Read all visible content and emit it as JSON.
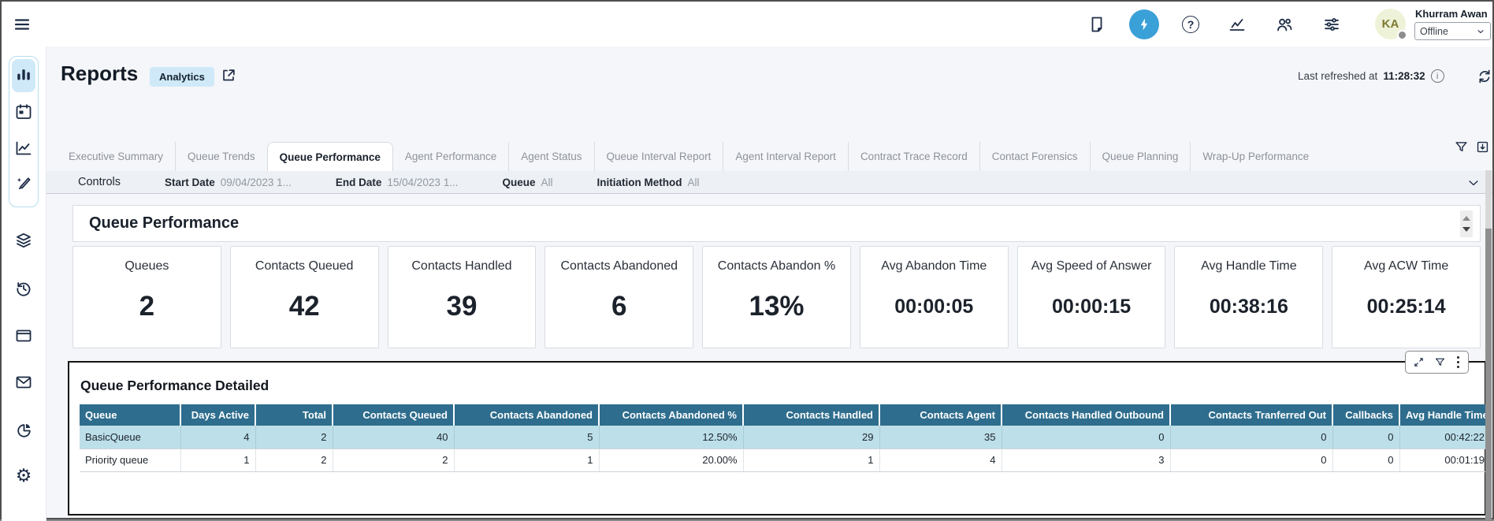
{
  "topbar": {
    "user": {
      "initials": "KA",
      "name": "Khurram Awan",
      "status": "Offline"
    }
  },
  "header": {
    "title": "Reports",
    "badge": "Analytics",
    "refresh_label": "Last refreshed at",
    "refresh_time": "11:28:32",
    "info_glyph": "i",
    "help_glyph": "?"
  },
  "tabs": [
    {
      "label": "Executive Summary",
      "active": false
    },
    {
      "label": "Queue Trends",
      "active": false
    },
    {
      "label": "Queue Performance",
      "active": true
    },
    {
      "label": "Agent Performance",
      "active": false
    },
    {
      "label": "Agent Status",
      "active": false
    },
    {
      "label": "Queue Interval Report",
      "active": false
    },
    {
      "label": "Agent Interval Report",
      "active": false
    },
    {
      "label": "Contract Trace Record",
      "active": false
    },
    {
      "label": "Contact Forensics",
      "active": false
    },
    {
      "label": "Queue Planning",
      "active": false
    },
    {
      "label": "Wrap-Up Performance",
      "active": false
    }
  ],
  "controls": {
    "label": "Controls",
    "filters": [
      {
        "label": "Start Date",
        "value": "09/04/2023 1..."
      },
      {
        "label": "End Date",
        "value": "15/04/2023 1..."
      },
      {
        "label": "Queue",
        "value": "All"
      },
      {
        "label": "Initiation Method",
        "value": "All"
      }
    ]
  },
  "section_title": "Queue Performance",
  "kpis": [
    {
      "label": "Queues",
      "value": "2"
    },
    {
      "label": "Contacts Queued",
      "value": "42"
    },
    {
      "label": "Contacts Handled",
      "value": "39"
    },
    {
      "label": "Contacts Abandoned",
      "value": "6"
    },
    {
      "label": "Contacts Abandon %",
      "value": "13%"
    },
    {
      "label": "Avg Abandon Time",
      "value": "00:00:05"
    },
    {
      "label": "Avg Speed of Answer",
      "value": "00:00:15"
    },
    {
      "label": "Avg Handle Time",
      "value": "00:38:16"
    },
    {
      "label": "Avg ACW Time",
      "value": "00:25:14"
    }
  ],
  "detailed": {
    "title": "Queue Performance Detailed",
    "columns": [
      "Queue",
      "Days Active",
      "Total",
      "Contacts Queued",
      "Contacts Abandoned",
      "Contacts Abandoned %",
      "Contacts Handled",
      "Contacts Agent",
      "Contacts Handled Outbound",
      "Contacts Tranferred Out",
      "Callbacks",
      "Avg Handle Time"
    ],
    "rows": [
      {
        "highlight": true,
        "cells": [
          "BasicQueue",
          "4",
          "2",
          "40",
          "5",
          "12.50%",
          "29",
          "35",
          "0",
          "0",
          "0",
          "00:42:22"
        ]
      },
      {
        "highlight": false,
        "cells": [
          "Priority queue",
          "1",
          "2",
          "2",
          "1",
          "20.00%",
          "1",
          "4",
          "3",
          "0",
          "0",
          "00:01:19"
        ]
      }
    ]
  },
  "colors": {
    "accent": "#3aa0d8",
    "table_header_bg": "#2e6d8d",
    "row_highlight_bg": "#bcdfe9",
    "badge_bg": "#cfe9f9",
    "active_nav_bg": "#cfe9f8"
  }
}
